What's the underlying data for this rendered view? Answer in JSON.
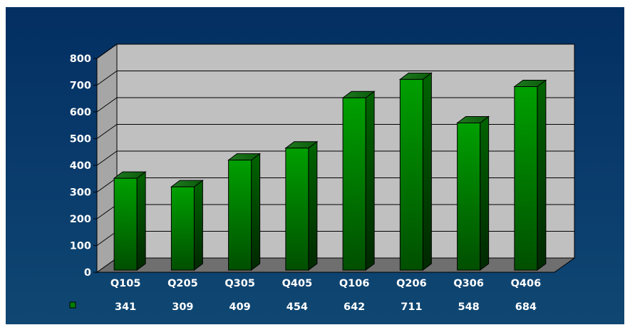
{
  "chart_data": {
    "type": "bar",
    "categories": [
      "Q105",
      "Q205",
      "Q305",
      "Q405",
      "Q106",
      "Q206",
      "Q306",
      "Q406"
    ],
    "values": [
      341,
      309,
      409,
      454,
      642,
      711,
      548,
      684
    ],
    "ylim": [
      0,
      800
    ],
    "yticks": [
      "0",
      "100",
      "200",
      "300",
      "400",
      "500",
      "600",
      "700",
      "800"
    ],
    "grid": true,
    "legend": "data table below chart",
    "colors": {
      "background": "#0a3c6c",
      "plot_back_wall": "#c0c0c0",
      "plot_side_wall": "#a6a6a6",
      "plot_floor": "#6f6f6f",
      "bar": "#008000"
    }
  }
}
